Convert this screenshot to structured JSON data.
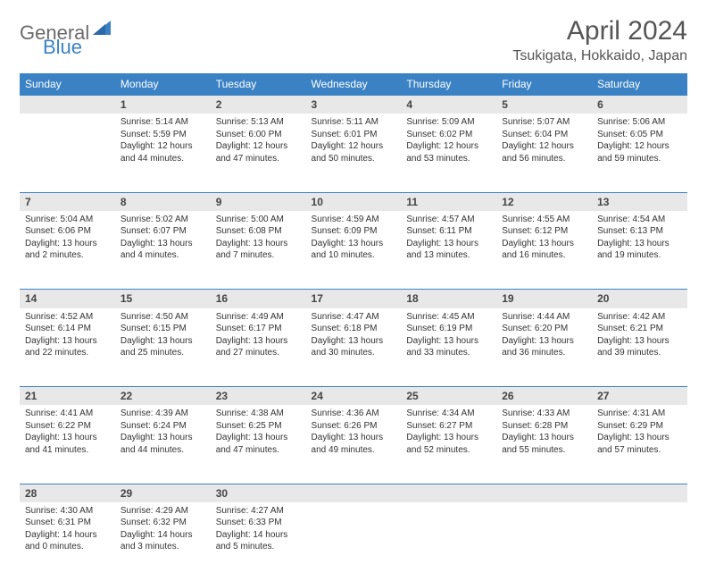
{
  "logo": {
    "text1": "General",
    "text2": "Blue"
  },
  "title": "April 2024",
  "location": "Tsukigata, Hokkaido, Japan",
  "header_bg": "#3b82c4",
  "days": [
    "Sunday",
    "Monday",
    "Tuesday",
    "Wednesday",
    "Thursday",
    "Friday",
    "Saturday"
  ],
  "cells": [
    {
      "n": "",
      "sr": "",
      "ss": "",
      "dl": ""
    },
    {
      "n": "1",
      "sr": "Sunrise: 5:14 AM",
      "ss": "Sunset: 5:59 PM",
      "dl": "Daylight: 12 hours and 44 minutes."
    },
    {
      "n": "2",
      "sr": "Sunrise: 5:13 AM",
      "ss": "Sunset: 6:00 PM",
      "dl": "Daylight: 12 hours and 47 minutes."
    },
    {
      "n": "3",
      "sr": "Sunrise: 5:11 AM",
      "ss": "Sunset: 6:01 PM",
      "dl": "Daylight: 12 hours and 50 minutes."
    },
    {
      "n": "4",
      "sr": "Sunrise: 5:09 AM",
      "ss": "Sunset: 6:02 PM",
      "dl": "Daylight: 12 hours and 53 minutes."
    },
    {
      "n": "5",
      "sr": "Sunrise: 5:07 AM",
      "ss": "Sunset: 6:04 PM",
      "dl": "Daylight: 12 hours and 56 minutes."
    },
    {
      "n": "6",
      "sr": "Sunrise: 5:06 AM",
      "ss": "Sunset: 6:05 PM",
      "dl": "Daylight: 12 hours and 59 minutes."
    },
    {
      "n": "7",
      "sr": "Sunrise: 5:04 AM",
      "ss": "Sunset: 6:06 PM",
      "dl": "Daylight: 13 hours and 2 minutes."
    },
    {
      "n": "8",
      "sr": "Sunrise: 5:02 AM",
      "ss": "Sunset: 6:07 PM",
      "dl": "Daylight: 13 hours and 4 minutes."
    },
    {
      "n": "9",
      "sr": "Sunrise: 5:00 AM",
      "ss": "Sunset: 6:08 PM",
      "dl": "Daylight: 13 hours and 7 minutes."
    },
    {
      "n": "10",
      "sr": "Sunrise: 4:59 AM",
      "ss": "Sunset: 6:09 PM",
      "dl": "Daylight: 13 hours and 10 minutes."
    },
    {
      "n": "11",
      "sr": "Sunrise: 4:57 AM",
      "ss": "Sunset: 6:11 PM",
      "dl": "Daylight: 13 hours and 13 minutes."
    },
    {
      "n": "12",
      "sr": "Sunrise: 4:55 AM",
      "ss": "Sunset: 6:12 PM",
      "dl": "Daylight: 13 hours and 16 minutes."
    },
    {
      "n": "13",
      "sr": "Sunrise: 4:54 AM",
      "ss": "Sunset: 6:13 PM",
      "dl": "Daylight: 13 hours and 19 minutes."
    },
    {
      "n": "14",
      "sr": "Sunrise: 4:52 AM",
      "ss": "Sunset: 6:14 PM",
      "dl": "Daylight: 13 hours and 22 minutes."
    },
    {
      "n": "15",
      "sr": "Sunrise: 4:50 AM",
      "ss": "Sunset: 6:15 PM",
      "dl": "Daylight: 13 hours and 25 minutes."
    },
    {
      "n": "16",
      "sr": "Sunrise: 4:49 AM",
      "ss": "Sunset: 6:17 PM",
      "dl": "Daylight: 13 hours and 27 minutes."
    },
    {
      "n": "17",
      "sr": "Sunrise: 4:47 AM",
      "ss": "Sunset: 6:18 PM",
      "dl": "Daylight: 13 hours and 30 minutes."
    },
    {
      "n": "18",
      "sr": "Sunrise: 4:45 AM",
      "ss": "Sunset: 6:19 PM",
      "dl": "Daylight: 13 hours and 33 minutes."
    },
    {
      "n": "19",
      "sr": "Sunrise: 4:44 AM",
      "ss": "Sunset: 6:20 PM",
      "dl": "Daylight: 13 hours and 36 minutes."
    },
    {
      "n": "20",
      "sr": "Sunrise: 4:42 AM",
      "ss": "Sunset: 6:21 PM",
      "dl": "Daylight: 13 hours and 39 minutes."
    },
    {
      "n": "21",
      "sr": "Sunrise: 4:41 AM",
      "ss": "Sunset: 6:22 PM",
      "dl": "Daylight: 13 hours and 41 minutes."
    },
    {
      "n": "22",
      "sr": "Sunrise: 4:39 AM",
      "ss": "Sunset: 6:24 PM",
      "dl": "Daylight: 13 hours and 44 minutes."
    },
    {
      "n": "23",
      "sr": "Sunrise: 4:38 AM",
      "ss": "Sunset: 6:25 PM",
      "dl": "Daylight: 13 hours and 47 minutes."
    },
    {
      "n": "24",
      "sr": "Sunrise: 4:36 AM",
      "ss": "Sunset: 6:26 PM",
      "dl": "Daylight: 13 hours and 49 minutes."
    },
    {
      "n": "25",
      "sr": "Sunrise: 4:34 AM",
      "ss": "Sunset: 6:27 PM",
      "dl": "Daylight: 13 hours and 52 minutes."
    },
    {
      "n": "26",
      "sr": "Sunrise: 4:33 AM",
      "ss": "Sunset: 6:28 PM",
      "dl": "Daylight: 13 hours and 55 minutes."
    },
    {
      "n": "27",
      "sr": "Sunrise: 4:31 AM",
      "ss": "Sunset: 6:29 PM",
      "dl": "Daylight: 13 hours and 57 minutes."
    },
    {
      "n": "28",
      "sr": "Sunrise: 4:30 AM",
      "ss": "Sunset: 6:31 PM",
      "dl": "Daylight: 14 hours and 0 minutes."
    },
    {
      "n": "29",
      "sr": "Sunrise: 4:29 AM",
      "ss": "Sunset: 6:32 PM",
      "dl": "Daylight: 14 hours and 3 minutes."
    },
    {
      "n": "30",
      "sr": "Sunrise: 4:27 AM",
      "ss": "Sunset: 6:33 PM",
      "dl": "Daylight: 14 hours and 5 minutes."
    },
    {
      "n": "",
      "sr": "",
      "ss": "",
      "dl": ""
    },
    {
      "n": "",
      "sr": "",
      "ss": "",
      "dl": ""
    },
    {
      "n": "",
      "sr": "",
      "ss": "",
      "dl": ""
    },
    {
      "n": "",
      "sr": "",
      "ss": "",
      "dl": ""
    }
  ]
}
